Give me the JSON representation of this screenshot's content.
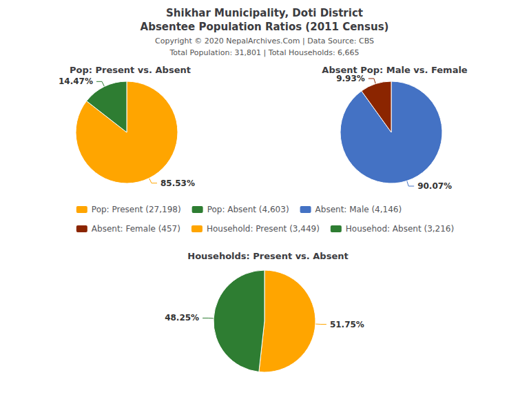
{
  "title": "Shikhar Municipality, Doti District",
  "subtitle": "Absentee Population Ratios (2011 Census)",
  "annotations": [
    "Copyright © 2020 NepalArchives.Com | Data Source: CBS",
    "Total Population: 31,801 | Total Households: 6,665"
  ],
  "chart_data": [
    {
      "type": "pie",
      "title": "Pop: Present vs. Absent",
      "categories": [
        "Pop: Present (27,198)",
        "Pop: Absent (4,603)"
      ],
      "values": [
        85.53,
        14.47
      ],
      "value_labels": [
        "85.53%",
        "14.47%"
      ],
      "colors": [
        "#FFA500",
        "#2E7D32"
      ],
      "data_labels": true
    },
    {
      "type": "pie",
      "title": "Absent Pop: Male vs. Female",
      "categories": [
        "Absent: Male (4,146)",
        "Absent: Female (457)"
      ],
      "values": [
        90.07,
        9.93
      ],
      "value_labels": [
        "90.07%",
        "9.93%"
      ],
      "colors": [
        "#4472C4",
        "#8B2500"
      ],
      "data_labels": true
    },
    {
      "type": "pie",
      "title": "Households: Present vs. Absent",
      "categories": [
        "Household: Present (3,449)",
        "Househod: Absent (3,216)"
      ],
      "values": [
        51.75,
        48.25
      ],
      "value_labels": [
        "51.75%",
        "48.25%"
      ],
      "colors": [
        "#FFA500",
        "#2E7D32"
      ],
      "data_labels": true
    }
  ]
}
